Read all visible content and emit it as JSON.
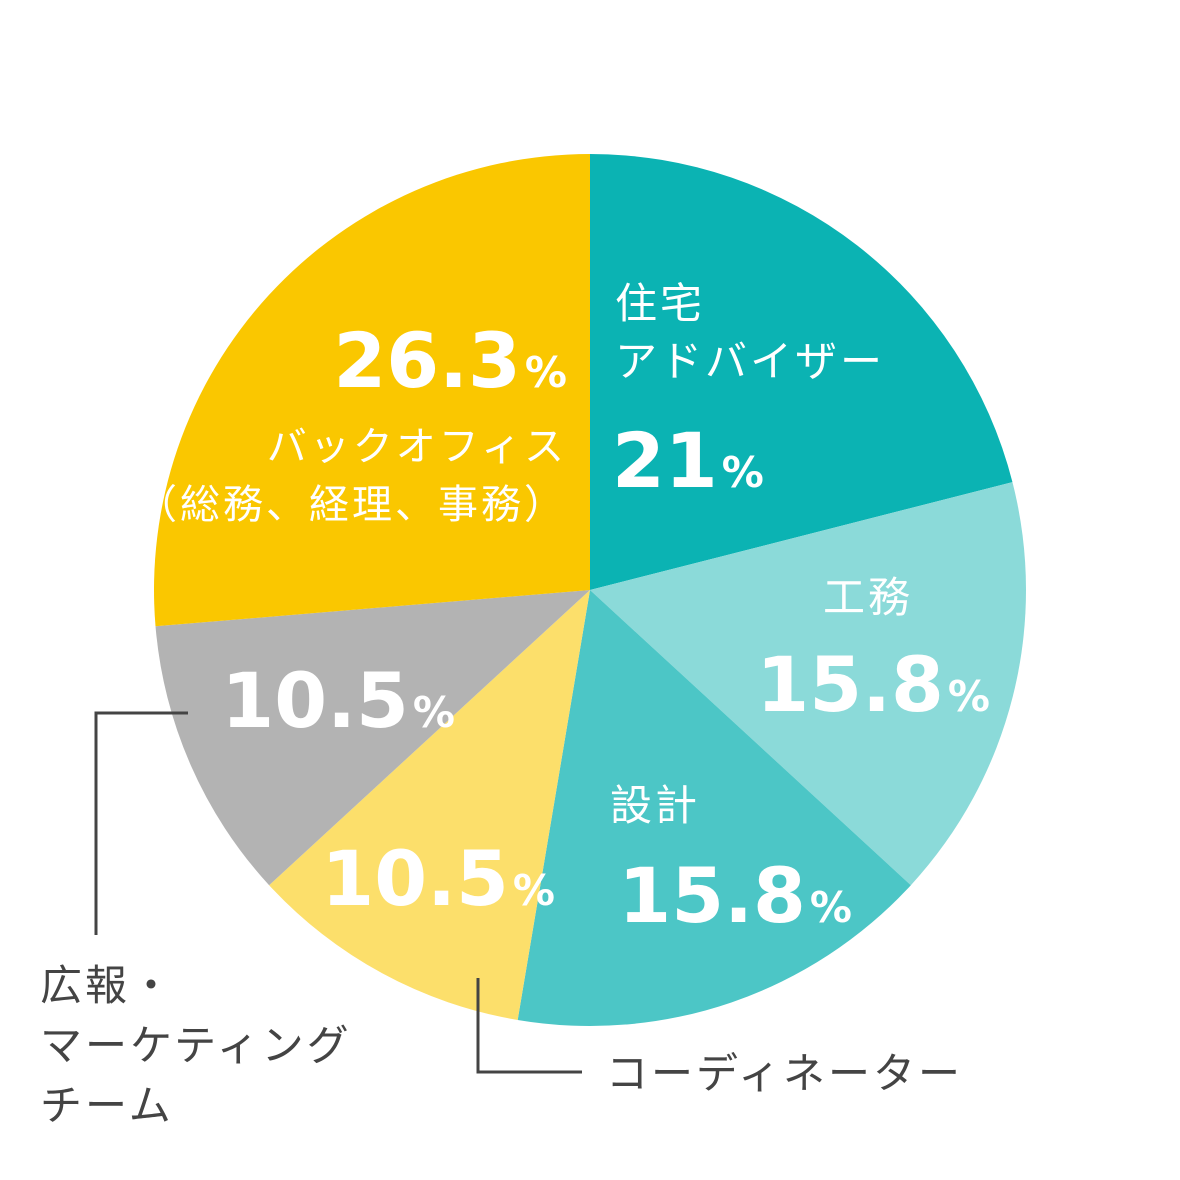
{
  "chart_data": {
    "type": "pie",
    "title": "",
    "slices": [
      {
        "name_lines": [
          "住宅",
          "アドバイザー"
        ],
        "value": 21,
        "value_text": "21",
        "pct_sign": "%",
        "color": "#0BB3B3",
        "text_color": "#ffffff"
      },
      {
        "name_lines": [
          "工務"
        ],
        "value": 15.8,
        "value_text": "15.8",
        "pct_sign": "%",
        "color": "#8BDAD9",
        "text_color": "#ffffff"
      },
      {
        "name_lines": [
          "設計"
        ],
        "value": 15.8,
        "value_text": "15.8",
        "pct_sign": "%",
        "color": "#4CC6C6",
        "text_color": "#ffffff"
      },
      {
        "name_lines": [
          "コーディネーター"
        ],
        "value": 10.5,
        "value_text": "10.5",
        "pct_sign": "%",
        "color": "#FCDF6B",
        "text_color": "#ffffff",
        "callout_color": "#444444"
      },
      {
        "name_lines": [
          "広報・",
          "マーケティング",
          "チーム"
        ],
        "value": 10.5,
        "value_text": "10.5",
        "pct_sign": "%",
        "color": "#B3B3B3",
        "text_color": "#ffffff",
        "callout_color": "#444444"
      },
      {
        "name_lines": [
          "バックオフィス",
          "（総務、経理、事務）"
        ],
        "value": 26.3,
        "value_text": "26.3",
        "pct_sign": "%",
        "color": "#FAC700",
        "text_color": "#ffffff"
      }
    ],
    "start_angle_deg": 0,
    "direction": "clockwise",
    "legend": "none"
  }
}
